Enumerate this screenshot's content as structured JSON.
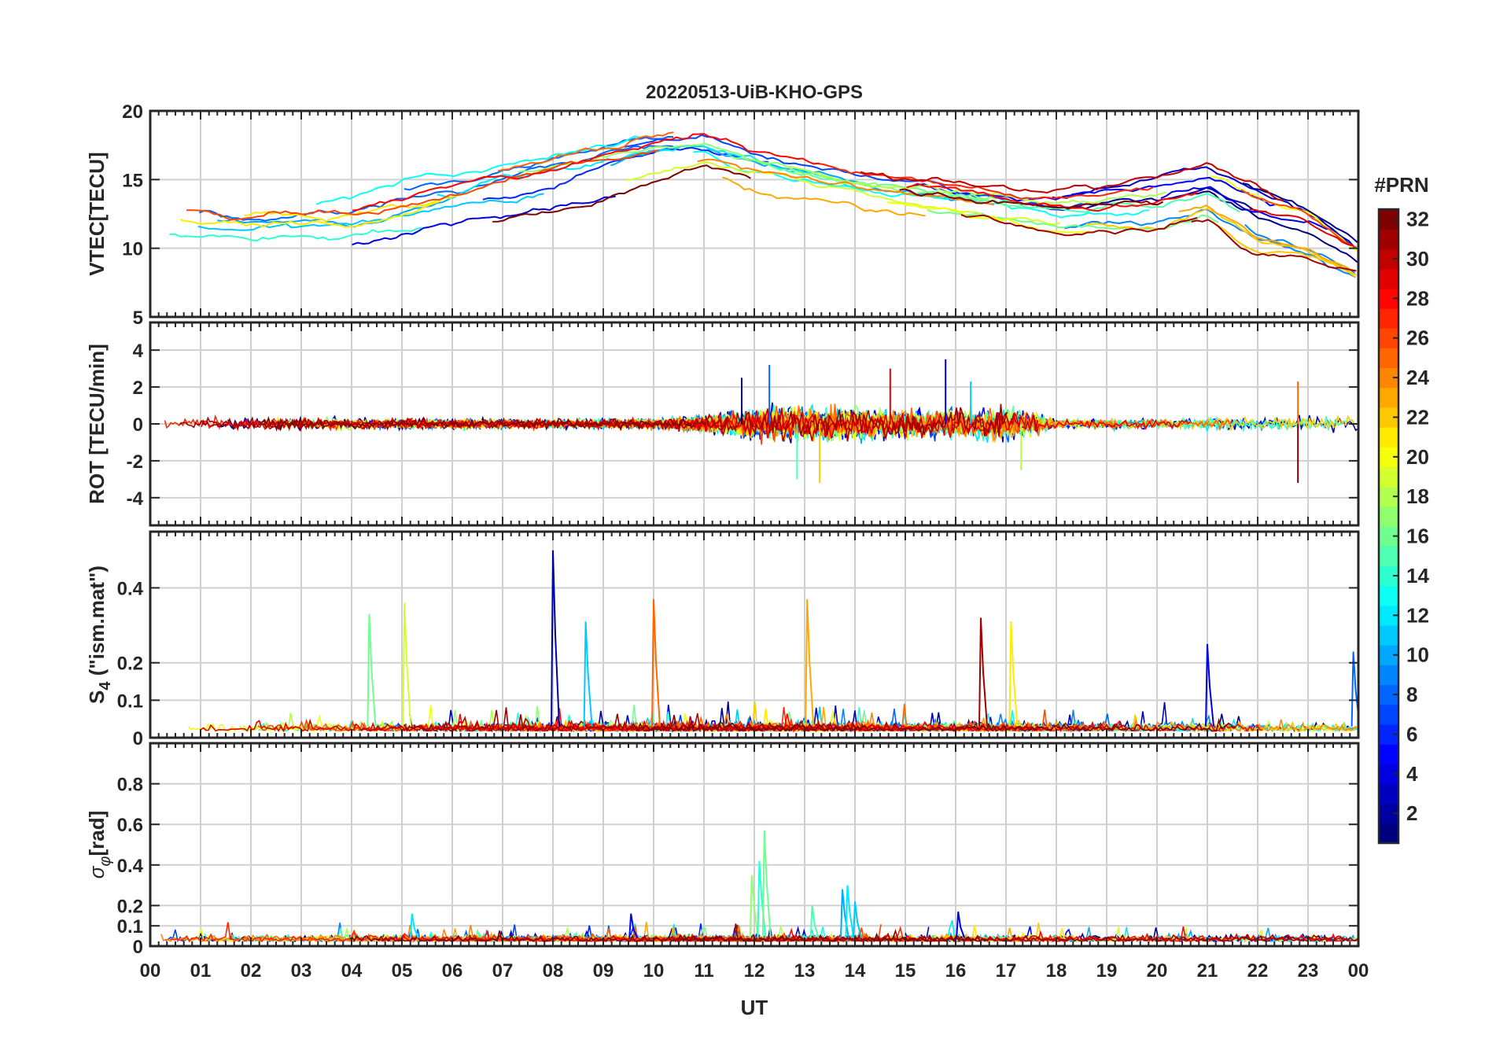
{
  "figure": {
    "title": "20220513-UiB-KHO-GPS",
    "xlabel": "UT",
    "x_tick_labels": [
      "00",
      "01",
      "02",
      "03",
      "04",
      "05",
      "06",
      "07",
      "08",
      "09",
      "10",
      "11",
      "12",
      "13",
      "14",
      "15",
      "16",
      "17",
      "18",
      "19",
      "20",
      "21",
      "22",
      "23",
      "00"
    ]
  },
  "colorbar": {
    "label": "#PRN",
    "range": [
      1,
      32
    ],
    "tick_labels": [
      "2",
      "4",
      "6",
      "8",
      "10",
      "12",
      "14",
      "16",
      "18",
      "20",
      "22",
      "24",
      "26",
      "28",
      "30",
      "32"
    ],
    "colormap": "jet",
    "levels": 32
  },
  "colors": {
    "axis": "#262626",
    "grid": "#d0d0d0",
    "jet_stops": [
      "#00007f",
      "#0000ff",
      "#007fff",
      "#00ffff",
      "#7fff7f",
      "#ffff00",
      "#ff7f00",
      "#ff0000",
      "#7f0000"
    ]
  },
  "chart_data": [
    {
      "type": "line",
      "panel": "VTEC",
      "title": "20220513-UiB-KHO-GPS",
      "ylabel": "VTEC[TECU]",
      "xlabel": "",
      "xlim": [
        0,
        24
      ],
      "ylim": [
        5,
        20
      ],
      "yticks": [
        5,
        10,
        15,
        20
      ],
      "ytick_labels": [
        "5",
        "10",
        "15",
        "20"
      ],
      "grid": true,
      "series_description": "one trace per GPS PRN 1-32, colored by PRN",
      "envelope": {
        "hours": [
          0,
          2,
          4,
          6,
          8,
          10,
          11,
          12,
          14,
          16,
          18,
          20,
          21,
          22,
          23,
          24
        ],
        "center": [
          12,
          11.5,
          11.5,
          13,
          14.5,
          16.5,
          17,
          16,
          14.5,
          13.5,
          12.5,
          13,
          14,
          12,
          11,
          9
        ],
        "spread": [
          1.5,
          1.5,
          2,
          2.2,
          2.5,
          1.8,
          1.5,
          1.5,
          1.2,
          1.2,
          1.5,
          2,
          2,
          2.5,
          2.2,
          1.5
        ]
      }
    },
    {
      "type": "line",
      "panel": "ROT",
      "ylabel": "ROT [TECU/min]",
      "xlim": [
        0,
        24
      ],
      "ylim": [
        -5.5,
        5.5
      ],
      "yticks": [
        -4,
        -2,
        0,
        2,
        4
      ],
      "ytick_labels": [
        "-4",
        "-2",
        "0",
        "2",
        "4"
      ],
      "grid": true,
      "activity": {
        "hours": [
          0,
          2,
          4,
          6,
          8,
          10,
          11,
          12,
          13,
          14,
          15,
          16,
          17,
          17.5,
          18,
          20,
          22,
          23,
          24
        ],
        "amplitude": [
          0.5,
          0.45,
          0.45,
          0.4,
          0.35,
          0.4,
          0.7,
          1.3,
          1.4,
          1.3,
          1.2,
          1.1,
          1.3,
          1.2,
          0.4,
          0.4,
          0.5,
          0.7,
          0.5
        ]
      },
      "peaks": [
        {
          "hour": 11.75,
          "value": 2.5
        },
        {
          "hour": 12.3,
          "value": 3.2
        },
        {
          "hour": 12.85,
          "value": -3.0
        },
        {
          "hour": 13.3,
          "value": -3.2
        },
        {
          "hour": 14.7,
          "value": 3.0
        },
        {
          "hour": 15.8,
          "value": 3.5
        },
        {
          "hour": 16.3,
          "value": 2.3
        },
        {
          "hour": 17.3,
          "value": -2.5
        },
        {
          "hour": 22.8,
          "value": 2.3
        },
        {
          "hour": 22.8,
          "value": -3.2
        }
      ]
    },
    {
      "type": "line",
      "panel": "S4",
      "ylabel": "S4 (\"ism.mat\")",
      "ylabel_main": "S",
      "ylabel_sub": "4",
      "ylabel_rest": " (\"ism.mat\")",
      "xlim": [
        0,
        24
      ],
      "ylim": [
        0,
        0.55
      ],
      "yticks": [
        0,
        0.1,
        0.2,
        0.4
      ],
      "ytick_labels": [
        "0",
        "0.1",
        "0.2",
        "0.4"
      ],
      "grid": true,
      "baseline": 0.03,
      "spikes": [
        {
          "hour": 4.35,
          "value": 0.33,
          "prn": 16
        },
        {
          "hour": 5.05,
          "value": 0.36,
          "prn": 19
        },
        {
          "hour": 8.0,
          "value": 0.5,
          "prn": 2
        },
        {
          "hour": 8.65,
          "value": 0.31,
          "prn": 11
        },
        {
          "hour": 10.0,
          "value": 0.37,
          "prn": 25
        },
        {
          "hour": 13.05,
          "value": 0.37,
          "prn": 23
        },
        {
          "hour": 16.5,
          "value": 0.32,
          "prn": 31
        },
        {
          "hour": 17.1,
          "value": 0.31,
          "prn": 21
        },
        {
          "hour": 21.0,
          "value": 0.25,
          "prn": 4
        },
        {
          "hour": 23.9,
          "value": 0.23,
          "prn": 8
        }
      ]
    },
    {
      "type": "line",
      "panel": "sigma_phi",
      "ylabel": "σφ [rad]",
      "ylabel_main": "σ",
      "ylabel_sub": "φ",
      "ylabel_rest": "[rad]",
      "xlim": [
        0,
        24
      ],
      "ylim": [
        0,
        1.0
      ],
      "yticks": [
        0,
        0.1,
        0.2,
        0.4,
        0.6,
        0.8
      ],
      "ytick_labels": [
        "0",
        "0.1",
        "0.2",
        "0.4",
        "0.6",
        "0.8"
      ],
      "grid": true,
      "baseline": 0.04,
      "spikes": [
        {
          "hour": 11.95,
          "value": 0.35,
          "prn": 17
        },
        {
          "hour": 12.1,
          "value": 0.42,
          "prn": 14
        },
        {
          "hour": 12.2,
          "value": 0.57,
          "prn": 16
        },
        {
          "hour": 13.15,
          "value": 0.2,
          "prn": 15
        },
        {
          "hour": 13.75,
          "value": 0.28,
          "prn": 10
        },
        {
          "hour": 13.85,
          "value": 0.3,
          "prn": 12
        },
        {
          "hour": 14.0,
          "value": 0.22,
          "prn": 11
        },
        {
          "hour": 5.2,
          "value": 0.16,
          "prn": 12
        },
        {
          "hour": 9.55,
          "value": 0.16,
          "prn": 5
        },
        {
          "hour": 16.05,
          "value": 0.17,
          "prn": 4
        }
      ]
    }
  ]
}
